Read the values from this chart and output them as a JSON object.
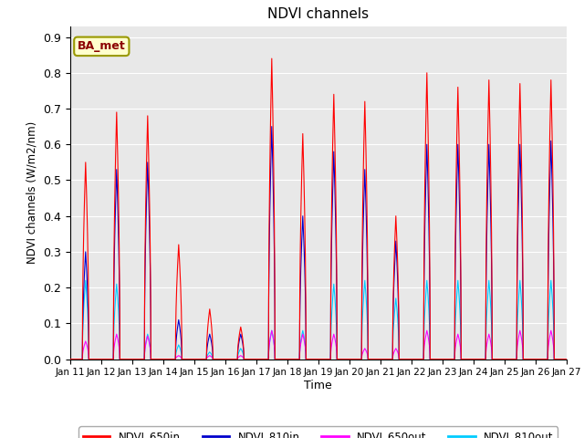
{
  "title": "NDVI channels",
  "xlabel": "Time",
  "ylabel": "NDVI channels (W/m2/nm)",
  "ylim": [
    0.0,
    0.93
  ],
  "color_650in": "#ff0000",
  "color_810in": "#0000cc",
  "color_650out": "#ff00ff",
  "color_810out": "#00ccff",
  "bg_color": "#e8e8e8",
  "annotation_text": "BA_met",
  "annotation_bg": "#ffffcc",
  "annotation_edge": "#999900",
  "legend_labels": [
    "NDVI_650in",
    "NDVI_810in",
    "NDVI_650out",
    "NDVI_810out"
  ],
  "spikes": [
    {
      "day": 0,
      "peak_650in": 0.55,
      "peak_810in": 0.3,
      "peak_650out": 0.05,
      "peak_810out": 0.22
    },
    {
      "day": 1,
      "peak_650in": 0.69,
      "peak_810in": 0.53,
      "peak_650out": 0.07,
      "peak_810out": 0.21
    },
    {
      "day": 2,
      "peak_650in": 0.68,
      "peak_810in": 0.55,
      "peak_650out": 0.065,
      "peak_810out": 0.07
    },
    {
      "day": 3,
      "peak_650in": 0.32,
      "peak_810in": 0.11,
      "peak_650out": 0.01,
      "peak_810out": 0.04
    },
    {
      "day": 4,
      "peak_650in": 0.14,
      "peak_810in": 0.07,
      "peak_650out": 0.01,
      "peak_810out": 0.02
    },
    {
      "day": 5,
      "peak_650in": 0.09,
      "peak_810in": 0.07,
      "peak_650out": 0.01,
      "peak_810out": 0.03
    },
    {
      "day": 6,
      "peak_650in": 0.84,
      "peak_810in": 0.65,
      "peak_650out": 0.08,
      "peak_810out": 0.08
    },
    {
      "day": 7,
      "peak_650in": 0.63,
      "peak_810in": 0.4,
      "peak_650out": 0.07,
      "peak_810out": 0.08
    },
    {
      "day": 8,
      "peak_650in": 0.74,
      "peak_810in": 0.58,
      "peak_650out": 0.07,
      "peak_810out": 0.21
    },
    {
      "day": 9,
      "peak_650in": 0.72,
      "peak_810in": 0.53,
      "peak_650out": 0.03,
      "peak_810out": 0.22
    },
    {
      "day": 10,
      "peak_650in": 0.4,
      "peak_810in": 0.33,
      "peak_650out": 0.03,
      "peak_810out": 0.17
    },
    {
      "day": 11,
      "peak_650in": 0.8,
      "peak_810in": 0.6,
      "peak_650out": 0.08,
      "peak_810out": 0.22
    },
    {
      "day": 12,
      "peak_650in": 0.76,
      "peak_810in": 0.6,
      "peak_650out": 0.07,
      "peak_810out": 0.22
    },
    {
      "day": 13,
      "peak_650in": 0.78,
      "peak_810in": 0.6,
      "peak_650out": 0.07,
      "peak_810out": 0.22
    },
    {
      "day": 14,
      "peak_650in": 0.77,
      "peak_810in": 0.6,
      "peak_650out": 0.08,
      "peak_810out": 0.22
    },
    {
      "day": 15,
      "peak_650in": 0.78,
      "peak_810in": 0.61,
      "peak_650out": 0.08,
      "peak_810out": 0.22
    }
  ]
}
